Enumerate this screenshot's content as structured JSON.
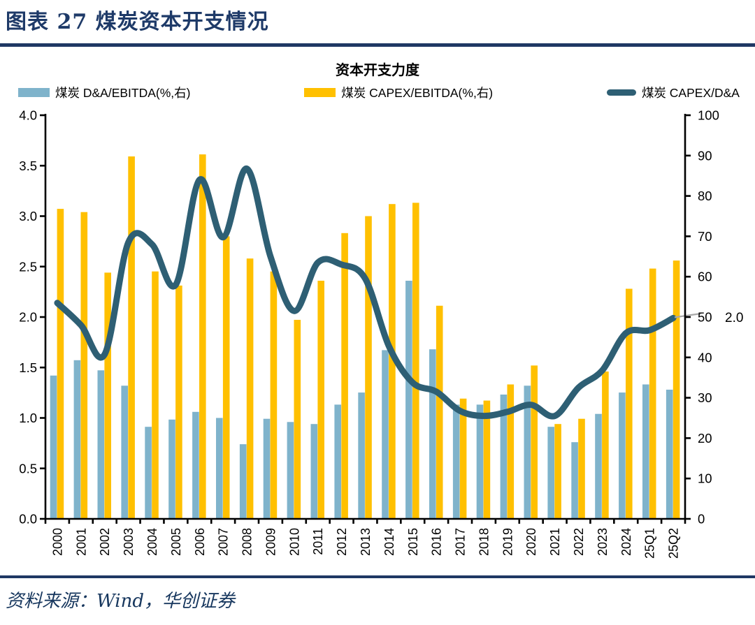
{
  "page": {
    "title": "图表 27 煤炭资本开支情况",
    "source": "资料来源：Wind，华创证券"
  },
  "colors": {
    "navy": "#1F3864",
    "title_navy": "#1E3A68",
    "bar_blue": "#7FB3CB",
    "bar_yellow": "#FFC000",
    "line_teal": "#2E5F74",
    "axis_black": "#000000",
    "leader_gray": "#A8A8A8"
  },
  "chart_data": {
    "type": "bar+line combo",
    "title": "资本开支力度",
    "categories": [
      "2000",
      "2001",
      "2002",
      "2003",
      "2004",
      "2005",
      "2006",
      "2007",
      "2008",
      "2009",
      "2010",
      "2011",
      "2012",
      "2013",
      "2014",
      "2015",
      "2016",
      "2017",
      "2018",
      "2019",
      "2020",
      "2021",
      "2022",
      "2023",
      "2024",
      "25Q1",
      "25Q2"
    ],
    "series": [
      {
        "name": "煤炭 D&A/EBITDA(%,右)",
        "type": "bar",
        "axis": "right",
        "color": "#7FB3CB",
        "values": [
          35.5,
          39.3,
          36.8,
          33.0,
          22.8,
          24.6,
          26.5,
          25.0,
          18.5,
          24.8,
          24.0,
          23.5,
          28.3,
          31.3,
          41.8,
          59.0,
          42.0,
          28.3,
          28.3,
          30.8,
          33.0,
          22.8,
          19.0,
          26.0,
          31.3,
          33.3,
          32.0
        ]
      },
      {
        "name": "煤炭 CAPEX/EBITDA(%,右)",
        "type": "bar",
        "axis": "right",
        "color": "#FFC000",
        "values": [
          76.8,
          76.0,
          61.0,
          89.8,
          61.3,
          57.8,
          90.3,
          70.0,
          64.5,
          61.3,
          49.3,
          59.0,
          70.8,
          75.0,
          78.0,
          78.3,
          52.8,
          29.8,
          29.3,
          33.3,
          38.0,
          23.5,
          24.8,
          36.5,
          57.0,
          62.0,
          64.0
        ]
      },
      {
        "name": "煤炭 CAPEX/D&A",
        "type": "line",
        "axis": "left",
        "color": "#2E5F74",
        "values": [
          2.14,
          1.92,
          1.63,
          2.74,
          2.72,
          2.32,
          3.36,
          2.79,
          3.47,
          2.6,
          2.06,
          2.54,
          2.52,
          2.38,
          1.71,
          1.35,
          1.26,
          1.07,
          1.02,
          1.06,
          1.13,
          1.02,
          1.3,
          1.47,
          1.84,
          1.87,
          1.99
        ]
      }
    ],
    "left_axis": {
      "min": 0,
      "max": 4,
      "step": 0.5,
      "decimals": 1
    },
    "right_axis": {
      "min": 0,
      "max": 100,
      "step": 10,
      "decimals": 0
    },
    "annotation": {
      "text": "2.0"
    },
    "grid": false,
    "legend_position": "top"
  }
}
